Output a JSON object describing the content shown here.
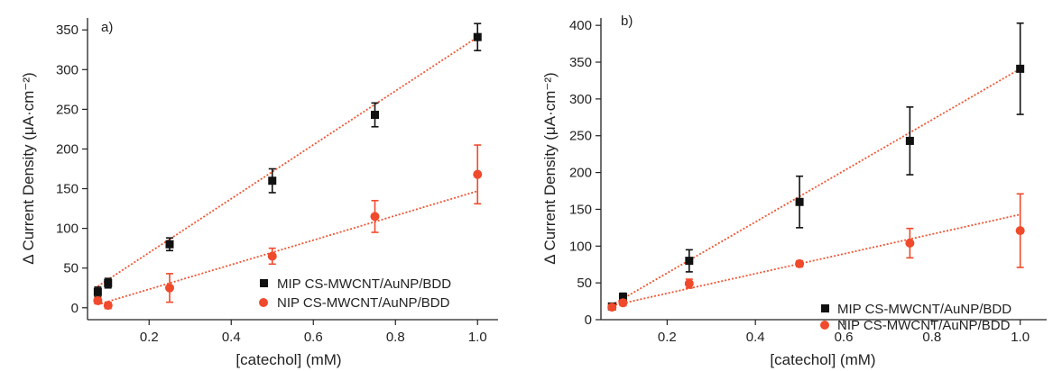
{
  "colors": {
    "mip": "#111111",
    "nip": "#f04a2c",
    "axis": "#222222",
    "fit_mip": "#ee5533",
    "fit_nip": "#ee5533"
  },
  "chart_data": [
    {
      "type": "scatter",
      "panel_label": "a)",
      "xlabel": "[catechol] (mM)",
      "ylabel": "Δ Current Density (μA·cm⁻²)",
      "xlim": [
        0.05,
        1.05
      ],
      "ylim": [
        -15,
        365
      ],
      "x_ticks": [
        0.2,
        0.4,
        0.6,
        0.8,
        1.0
      ],
      "x_tick_labels": [
        "0.2",
        "0.4",
        "0.6",
        "0.8",
        "1.0"
      ],
      "y_ticks": [
        0,
        50,
        100,
        150,
        200,
        250,
        300,
        350
      ],
      "y_tick_labels": [
        "0",
        "50",
        "100",
        "150",
        "200",
        "250",
        "300",
        "350"
      ],
      "legend_position": "bottom-right",
      "series": [
        {
          "name": "MIP CS-MWCNT/AuNP/BDD",
          "marker": "square",
          "x": [
            0.075,
            0.1,
            0.25,
            0.5,
            0.75,
            1.0
          ],
          "y": [
            20,
            31,
            80,
            160,
            243,
            341
          ],
          "err": [
            6,
            6,
            8,
            15,
            15,
            17
          ],
          "fit": {
            "x": [
              0.075,
              1.0
            ],
            "y": [
              27,
              341
            ]
          }
        },
        {
          "name": "NIP CS-MWCNT/AuNP/BDD",
          "marker": "circle",
          "x": [
            0.075,
            0.1,
            0.25,
            0.5,
            0.75,
            1.0
          ],
          "y": [
            9,
            3,
            25,
            65,
            115,
            168
          ],
          "err": [
            4,
            4,
            18,
            10,
            20,
            37
          ],
          "fit": {
            "x": [
              0.075,
              1.0
            ],
            "y": [
              4,
              147
            ]
          }
        }
      ]
    },
    {
      "type": "scatter",
      "panel_label": "b)",
      "xlabel": "[catechol] (mM)",
      "ylabel": "Δ Current Density (μA·cm⁻²)",
      "xlim": [
        0.05,
        1.06
      ],
      "ylim": [
        0,
        410
      ],
      "x_ticks": [
        0.2,
        0.4,
        0.6,
        0.8,
        1.0
      ],
      "x_tick_labels": [
        "0.2",
        "0.4",
        "0.6",
        "0.8",
        "1.0"
      ],
      "y_ticks": [
        0,
        50,
        100,
        150,
        200,
        250,
        300,
        350,
        400
      ],
      "y_tick_labels": [
        "0",
        "50",
        "100",
        "150",
        "200",
        "250",
        "300",
        "350",
        "400"
      ],
      "legend_position": "bottom-right",
      "series": [
        {
          "name": "MIP CS-MWCNT/AuNP/BDD",
          "marker": "square",
          "x": [
            0.075,
            0.1,
            0.25,
            0.5,
            0.75,
            1.0
          ],
          "y": [
            18,
            31,
            80,
            160,
            243,
            341
          ],
          "err": [
            4,
            5,
            15,
            35,
            46,
            62
          ],
          "fit": {
            "x": [
              0.075,
              1.0
            ],
            "y": [
              20,
              341
            ]
          }
        },
        {
          "name": "NIP CS-MWCNT/AuNP/BDD",
          "marker": "circle",
          "x": [
            0.075,
            0.1,
            0.25,
            0.5,
            0.75,
            1.0
          ],
          "y": [
            17,
            23,
            49,
            76,
            104,
            121
          ],
          "err": [
            3,
            4,
            6,
            4,
            20,
            50
          ],
          "fit": {
            "x": [
              0.075,
              1.0
            ],
            "y": [
              19,
              143
            ]
          }
        }
      ]
    }
  ]
}
